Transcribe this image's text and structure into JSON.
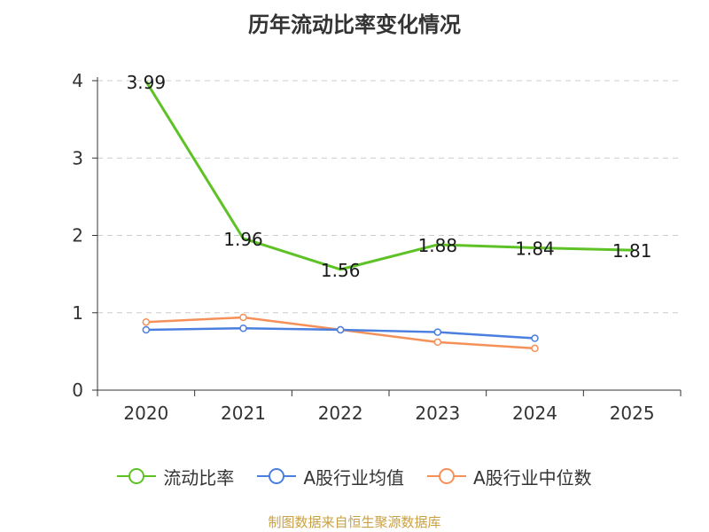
{
  "chart_data": {
    "type": "line",
    "title": "历年流动比率变化情况",
    "categories": [
      "2020",
      "2021",
      "2022",
      "2023",
      "2024",
      "2025"
    ],
    "ylim": [
      0,
      4
    ],
    "yticks": [
      0,
      1,
      2,
      3,
      4
    ],
    "xlabel": "",
    "ylabel": "",
    "grid": true,
    "legend_position": "bottom",
    "series": [
      {
        "name": "流动比率",
        "color": "#5ec226",
        "values": [
          3.99,
          1.96,
          1.56,
          1.88,
          1.84,
          1.81
        ],
        "labels": [
          "3.99",
          "1.96",
          "1.56",
          "1.88",
          "1.84",
          "1.81"
        ]
      },
      {
        "name": "A股行业均值",
        "color": "#4a7fe0",
        "values": [
          0.78,
          0.8,
          0.78,
          0.75,
          0.67,
          null
        ]
      },
      {
        "name": "A股行业中位数",
        "color": "#f59058",
        "values": [
          0.88,
          0.94,
          0.78,
          0.62,
          0.54,
          null
        ]
      }
    ]
  },
  "source": "制图数据来自恒生聚源数据库"
}
